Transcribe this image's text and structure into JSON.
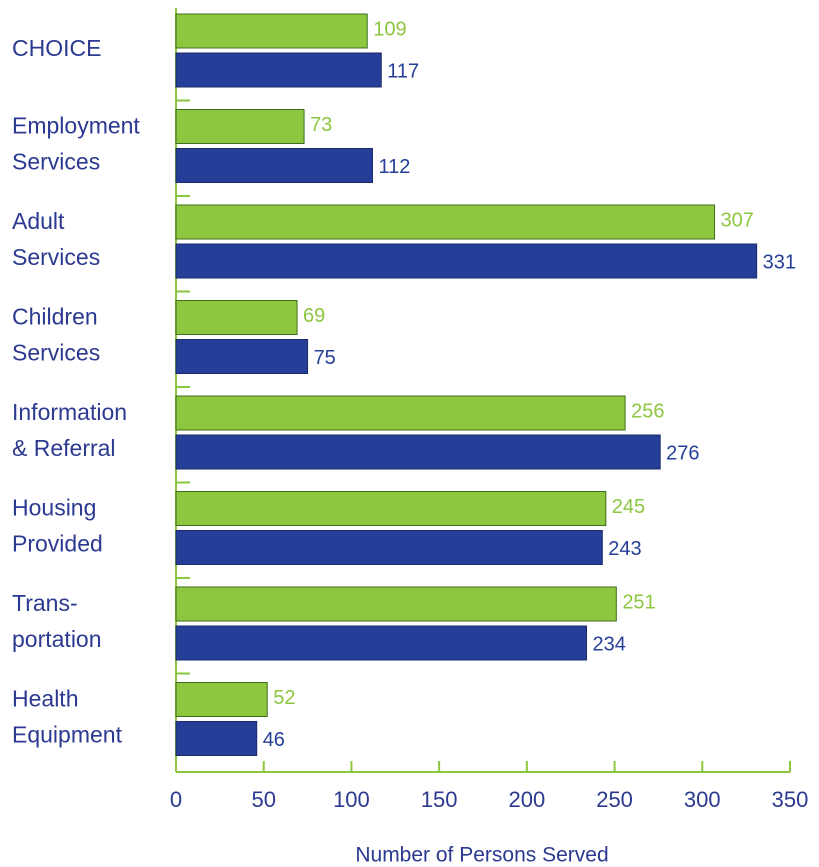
{
  "chart_data": {
    "type": "bar",
    "orientation": "horizontal",
    "x_label": "Number of Persons Served",
    "categories": [
      "CHOICE",
      "Employment\nServices",
      "Adult\nServices",
      "Children\nServices",
      "Information\n& Referral",
      "Housing\nProvided",
      "Trans-\nportation",
      "Health\nEquipment"
    ],
    "series": [
      {
        "color": "#8dc63f",
        "label_color": "#8dc63f",
        "values": [
          109,
          73,
          307,
          69,
          256,
          245,
          251,
          52
        ]
      },
      {
        "color": "#253f98",
        "label_color": "#253f98",
        "values": [
          117,
          112,
          331,
          75,
          276,
          243,
          234,
          46
        ]
      }
    ],
    "xlim": [
      0,
      350
    ],
    "xticks": [
      0,
      50,
      100,
      150,
      200,
      250,
      300,
      350
    ]
  }
}
